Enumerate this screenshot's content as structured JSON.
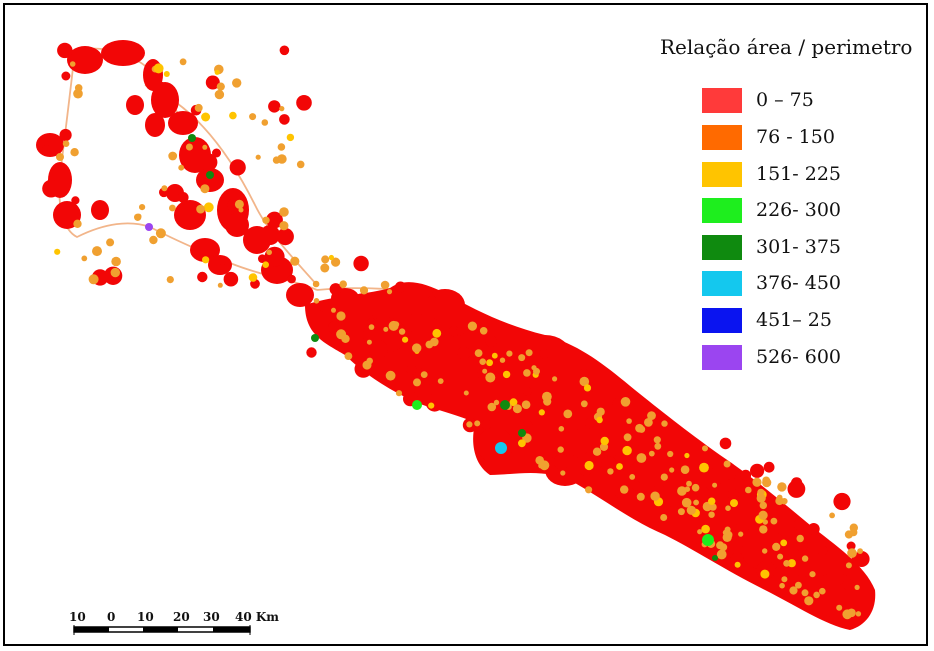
{
  "legend": {
    "title": "Relação área / perimetro",
    "classes": [
      {
        "label": "0 – 75",
        "color": "#ff3a3a"
      },
      {
        "label": "76 - 150",
        "color": "#ff6a00"
      },
      {
        "label": "151- 225",
        "color": "#ffc400"
      },
      {
        "label": "226- 300",
        "color": "#1eee1e"
      },
      {
        "label": "301- 375",
        "color": "#0f8a0f"
      },
      {
        "label": "376- 450",
        "color": "#14c8ee"
      },
      {
        "label": "451– 25",
        "color": "#0a14f0"
      },
      {
        "label": "526- 600",
        "color": "#9b45f0"
      }
    ]
  },
  "scale_bar": {
    "labels": [
      "10",
      "0",
      "10",
      "20",
      "30",
      "40 Km"
    ]
  },
  "map_colors": {
    "land": "#f20606",
    "dot": "#f0a030",
    "road": "#f2b58a"
  }
}
